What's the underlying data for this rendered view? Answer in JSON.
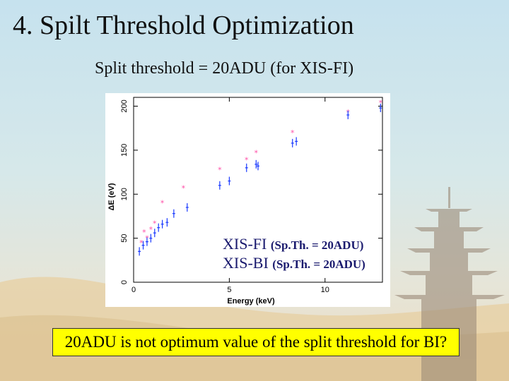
{
  "slide": {
    "title": "4. Spilt Threshold Optimization",
    "subtitle": "Split threshold = 20ADU (for XIS-FI)",
    "callout": "20ADU is not optimum value of the split threshold for BI?"
  },
  "legend": {
    "fi_label": "XIS-FI",
    "fi_note": "(Sp.Th. = 20ADU)",
    "bi_label": "XIS-BI",
    "bi_note": "(Sp.Th. = 20ADU)"
  },
  "chart_data": {
    "type": "scatter",
    "xlabel": "Energy (keV)",
    "ylabel": "ΔE (eV)",
    "xlim": [
      0,
      13
    ],
    "ylim": [
      0,
      210
    ],
    "xticks": [
      0,
      5,
      10
    ],
    "yticks": [
      0,
      50,
      100,
      150,
      200
    ],
    "series": [
      {
        "name": "XIS-FI (Sp.Th. = 20ADU)",
        "color": "#ff4fa8",
        "marker": "star",
        "x": [
          0.4,
          0.55,
          0.7,
          0.9,
          1.1,
          1.5,
          2.6,
          4.5,
          5.9,
          6.4,
          8.3,
          11.2,
          12.9
        ],
        "y": [
          45,
          57,
          50,
          60,
          67,
          90,
          107,
          128,
          139,
          147,
          170,
          193,
          204
        ]
      },
      {
        "name": "XIS-BI (Sp.Th. = 20ADU)",
        "color": "#1a3aff",
        "marker": "cross",
        "x": [
          0.3,
          0.5,
          0.7,
          0.9,
          1.1,
          1.3,
          1.5,
          1.75,
          2.1,
          2.8,
          4.5,
          5.0,
          5.9,
          6.4,
          6.5,
          8.3,
          8.5,
          11.2,
          12.9
        ],
        "y": [
          35,
          42,
          46,
          50,
          56,
          62,
          66,
          68,
          78,
          85,
          110,
          115,
          130,
          134,
          132,
          158,
          160,
          190,
          198
        ]
      }
    ]
  }
}
